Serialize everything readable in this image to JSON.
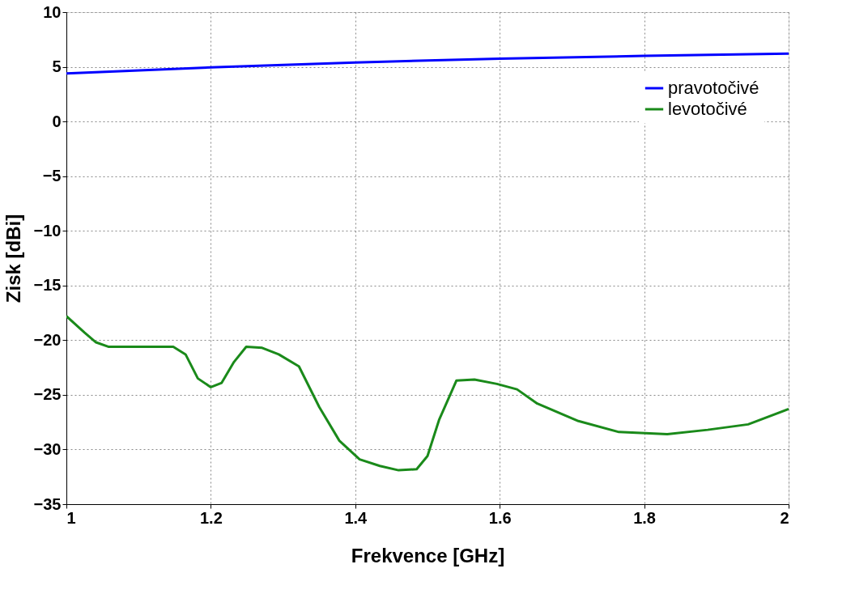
{
  "chart_data": {
    "type": "line",
    "xlabel": "Frekvence [GHz]",
    "ylabel": "Zisk [dBi]",
    "xlim": [
      1,
      2
    ],
    "xticks": [
      1,
      1.2,
      1.4,
      1.6,
      1.8,
      2
    ],
    "ylim": [
      -35,
      10
    ],
    "yticks": [
      -35,
      -30,
      -25,
      -20,
      -15,
      -10,
      -5,
      0,
      5,
      10
    ],
    "grid": true,
    "legend": "top right",
    "line_style": "solid",
    "marker": "none",
    "series": [
      {
        "name": "pravotočivé",
        "color": "#0000ff",
        "x": [
          1.0,
          1.2,
          1.4,
          1.6,
          1.8,
          2.0
        ],
        "values": [
          4.4,
          4.95,
          5.4,
          5.75,
          6.0,
          6.2
        ]
      },
      {
        "name": "levotočivé",
        "color": "#1a8a1a",
        "x": [
          1.0,
          1.025,
          1.041,
          1.058,
          1.103,
          1.148,
          1.165,
          1.182,
          1.2,
          1.215,
          1.232,
          1.249,
          1.271,
          1.294,
          1.322,
          1.35,
          1.378,
          1.406,
          1.434,
          1.46,
          1.485,
          1.5,
          1.516,
          1.54,
          1.565,
          1.596,
          1.624,
          1.652,
          1.709,
          1.765,
          1.832,
          1.888,
          1.944,
          2.0
        ],
        "values": [
          -17.8,
          -19.3,
          -20.2,
          -20.6,
          -20.6,
          -20.6,
          -21.3,
          -23.5,
          -24.3,
          -23.9,
          -22.0,
          -20.6,
          -20.7,
          -21.3,
          -22.4,
          -26.1,
          -29.2,
          -30.9,
          -31.5,
          -31.9,
          -31.8,
          -30.6,
          -27.3,
          -23.7,
          -23.6,
          -24.0,
          -24.5,
          -25.8,
          -27.4,
          -28.4,
          -28.6,
          -28.2,
          -27.7,
          -26.3
        ]
      }
    ]
  }
}
